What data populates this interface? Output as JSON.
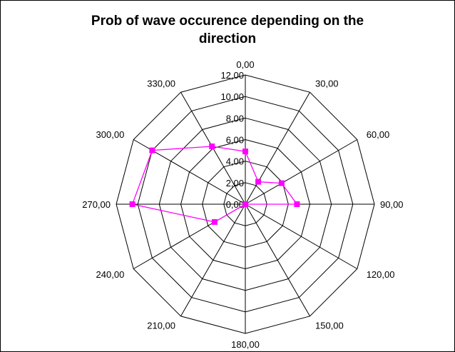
{
  "chart_data": {
    "type": "radar",
    "title_lines": [
      "Prob of wave occurence depending on the",
      "direction"
    ],
    "categories": [
      "0,00",
      "30,00",
      "60,00",
      "90,00",
      "120,00",
      "150,00",
      "180,00",
      "210,00",
      "240,00",
      "270,00",
      "300,00",
      "330,00"
    ],
    "radial_ticks": [
      "0,00",
      "2,00",
      "4,00",
      "6,00",
      "8,00",
      "10,00",
      "12,00"
    ],
    "rlim": [
      0,
      12
    ],
    "grid": true,
    "legend": "none",
    "series": [
      {
        "values": [
          4.9,
          2.4,
          3.9,
          4.8,
          0,
          0,
          0,
          0,
          3.3,
          10.5,
          10.0,
          6.2
        ],
        "color": "#ff00ff"
      }
    ]
  }
}
